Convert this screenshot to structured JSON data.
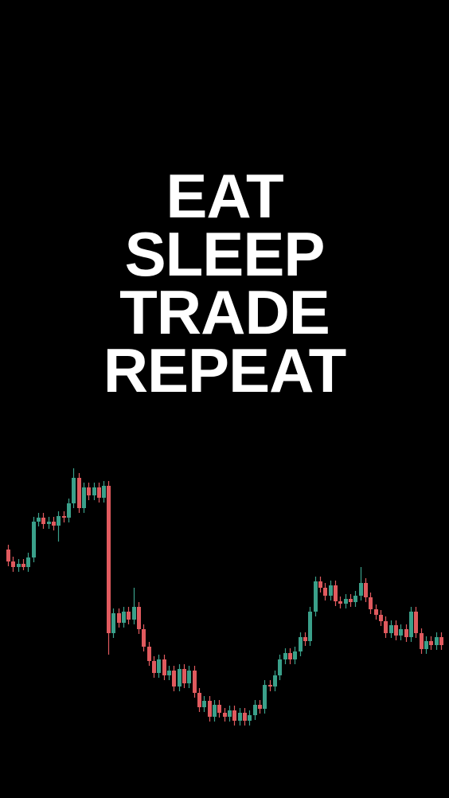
{
  "headline": {
    "lines": [
      "EAT",
      "SLEEP",
      "TRADE",
      "REPEAT"
    ]
  }
}
